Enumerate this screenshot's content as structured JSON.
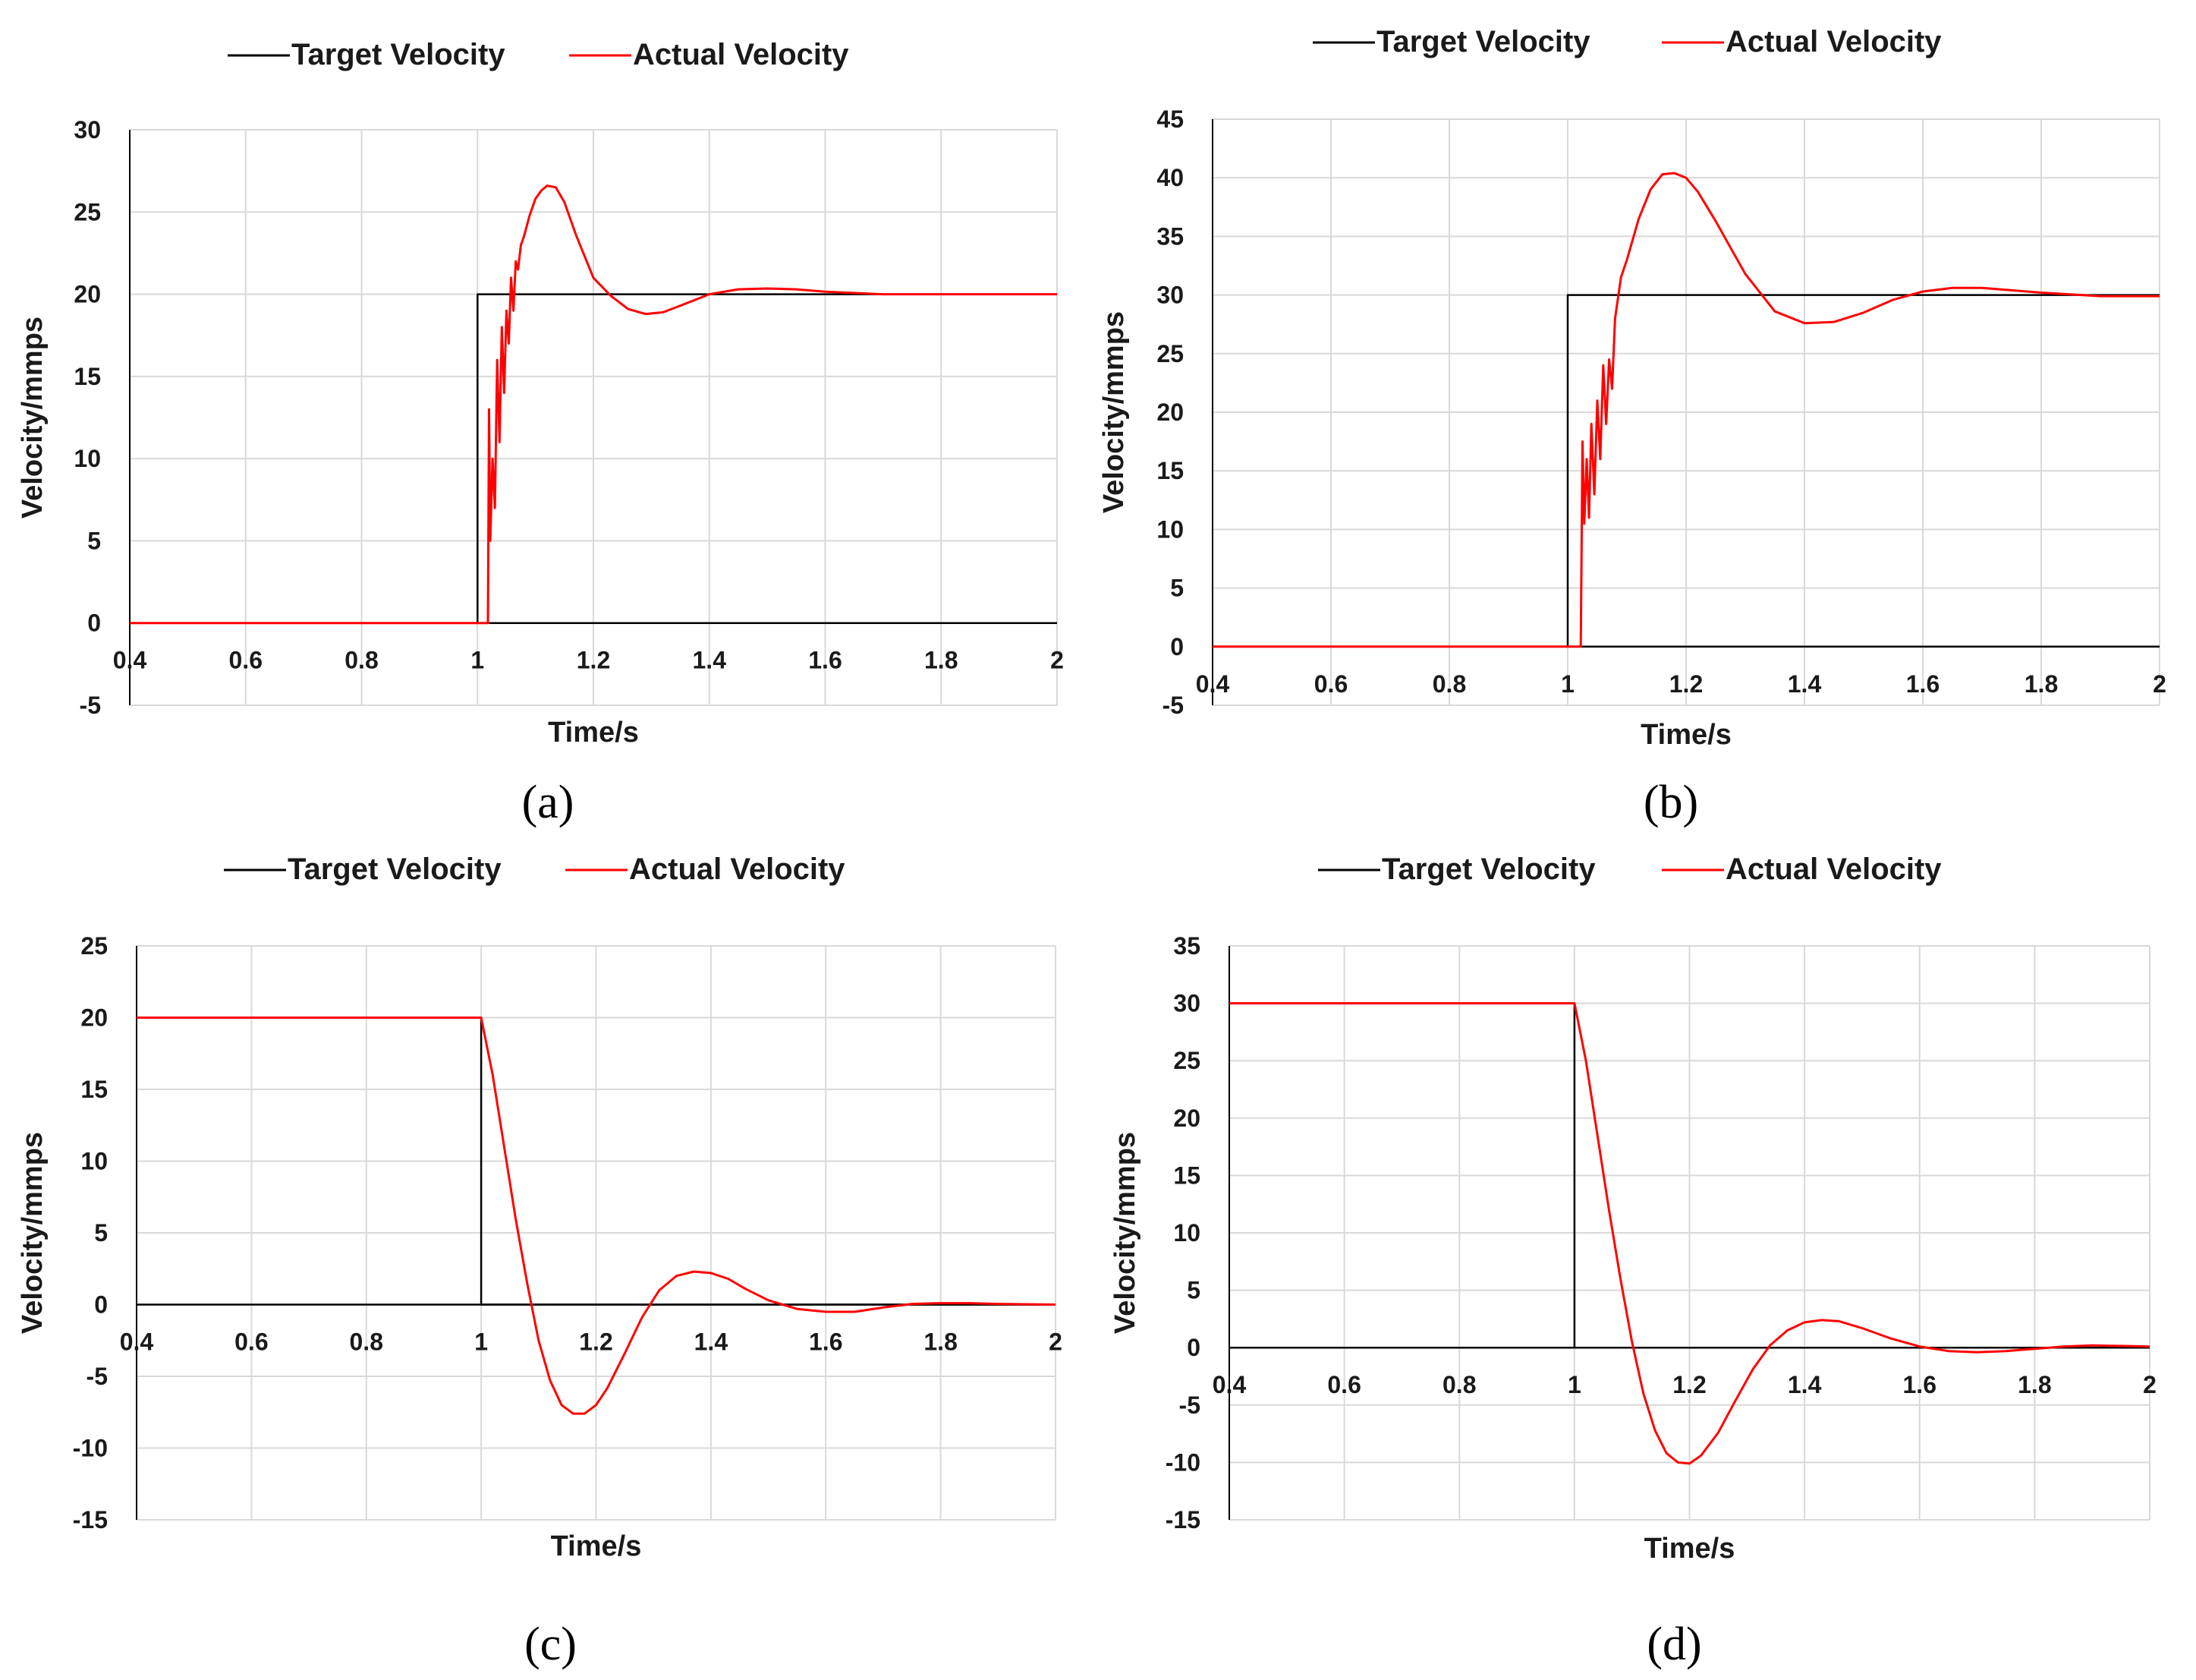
{
  "figure_captions": [
    "(a)",
    "(b)",
    "(c)",
    "(d)"
  ],
  "colors": {
    "target": "#000000",
    "actual": "#ff0000",
    "grid": "#d9d9d9",
    "axis": "#000000"
  },
  "chart_data": [
    {
      "type": "line",
      "caption": "(a)",
      "xlabel": "Time/s",
      "ylabel": "Velocity/mmps",
      "xlim": [
        0.4,
        2
      ],
      "ylim": [
        -5,
        30
      ],
      "xticks": [
        0.4,
        0.6,
        0.8,
        1,
        1.2,
        1.4,
        1.6,
        1.8,
        2
      ],
      "xtick_labels": [
        "0.4",
        "0.6",
        "0.8",
        "1",
        "1.2",
        "1.4",
        "1.6",
        "1.8",
        "2"
      ],
      "yticks": [
        -5,
        0,
        5,
        10,
        15,
        20,
        25,
        30
      ],
      "ytick_labels": [
        "-5",
        "0",
        "5",
        "10",
        "15",
        "20",
        "25",
        "30"
      ],
      "grid": true,
      "legend": [
        "Target Velocity",
        "Actual Velocity"
      ],
      "legend_position": "top",
      "series": [
        {
          "name": "Target Velocity",
          "color": "#000000",
          "x": [
            0.4,
            1.0,
            1.0,
            2.0
          ],
          "y": [
            0,
            0,
            20,
            20
          ]
        },
        {
          "name": "Actual Velocity",
          "color": "#ff0000",
          "x": [
            0.4,
            1.018,
            1.02,
            1.022,
            1.026,
            1.03,
            1.034,
            1.038,
            1.042,
            1.046,
            1.05,
            1.054,
            1.058,
            1.062,
            1.066,
            1.07,
            1.075,
            1.08,
            1.09,
            1.1,
            1.11,
            1.12,
            1.135,
            1.15,
            1.17,
            1.2,
            1.23,
            1.26,
            1.29,
            1.32,
            1.35,
            1.4,
            1.45,
            1.5,
            1.55,
            1.6,
            1.7,
            1.8,
            2.0
          ],
          "y": [
            0,
            0,
            13,
            5,
            10,
            7,
            16,
            11,
            18,
            14,
            19,
            17,
            21,
            19,
            22,
            21.5,
            23,
            23.5,
            24.8,
            25.8,
            26.3,
            26.6,
            26.5,
            25.6,
            23.6,
            21.0,
            19.9,
            19.1,
            18.8,
            18.9,
            19.3,
            20.0,
            20.3,
            20.35,
            20.3,
            20.15,
            20.0,
            20.0,
            20.0
          ]
        }
      ]
    },
    {
      "type": "line",
      "caption": "(b)",
      "xlabel": "Time/s",
      "ylabel": "Velocity/mmps",
      "xlim": [
        0.4,
        2
      ],
      "ylim": [
        -5,
        45
      ],
      "xticks": [
        0.4,
        0.6,
        0.8,
        1,
        1.2,
        1.4,
        1.6,
        1.8,
        2
      ],
      "xtick_labels": [
        "0.4",
        "0.6",
        "0.8",
        "1",
        "1.2",
        "1.4",
        "1.6",
        "1.8",
        "2"
      ],
      "yticks": [
        -5,
        0,
        5,
        10,
        15,
        20,
        25,
        30,
        35,
        40,
        45
      ],
      "ytick_labels": [
        "-5",
        "0",
        "5",
        "10",
        "15",
        "20",
        "25",
        "30",
        "35",
        "40",
        "45"
      ],
      "grid": true,
      "legend": [
        "Target Velocity",
        "Actual Velocity"
      ],
      "legend_position": "top",
      "series": [
        {
          "name": "Target Velocity",
          "color": "#000000",
          "x": [
            0.4,
            1.0,
            1.0,
            2.0
          ],
          "y": [
            0,
            0,
            30,
            30
          ]
        },
        {
          "name": "Actual Velocity",
          "color": "#ff0000",
          "x": [
            0.4,
            1.022,
            1.025,
            1.028,
            1.032,
            1.036,
            1.04,
            1.045,
            1.05,
            1.055,
            1.06,
            1.065,
            1.07,
            1.075,
            1.08,
            1.09,
            1.1,
            1.12,
            1.14,
            1.16,
            1.18,
            1.2,
            1.22,
            1.25,
            1.3,
            1.35,
            1.4,
            1.45,
            1.5,
            1.55,
            1.6,
            1.65,
            1.7,
            1.75,
            1.8,
            1.9,
            2.0
          ],
          "y": [
            0,
            0,
            17.5,
            10.5,
            16,
            11,
            19,
            13,
            21,
            16,
            24,
            19,
            24.5,
            22,
            28,
            31.5,
            33,
            36.5,
            39,
            40.3,
            40.4,
            40.0,
            38.8,
            36.3,
            31.8,
            28.6,
            27.6,
            27.7,
            28.5,
            29.6,
            30.3,
            30.6,
            30.6,
            30.4,
            30.2,
            29.9,
            29.9
          ]
        }
      ]
    },
    {
      "type": "line",
      "caption": "(c)",
      "xlabel": "Time/s",
      "ylabel": "Velocity/mmps",
      "xlim": [
        0.4,
        2
      ],
      "ylim": [
        -15,
        25
      ],
      "xticks": [
        0.4,
        0.6,
        0.8,
        1,
        1.2,
        1.4,
        1.6,
        1.8,
        2
      ],
      "xtick_labels": [
        "0.4",
        "0.6",
        "0.8",
        "1",
        "1.2",
        "1.4",
        "1.6",
        "1.8",
        "2"
      ],
      "yticks": [
        -15,
        -10,
        -5,
        0,
        5,
        10,
        15,
        20,
        25
      ],
      "ytick_labels": [
        "-15",
        "-10",
        "-5",
        "0",
        "5",
        "10",
        "15",
        "20",
        "25"
      ],
      "grid": true,
      "legend": [
        "Target Velocity",
        "Actual Velocity"
      ],
      "legend_position": "top",
      "series": [
        {
          "name": "Target Velocity",
          "color": "#000000",
          "x": [
            0.4,
            1.0,
            1.0,
            2.0
          ],
          "y": [
            20,
            20,
            0,
            0
          ]
        },
        {
          "name": "Actual Velocity",
          "color": "#ff0000",
          "x": [
            0.4,
            1.0,
            1.02,
            1.04,
            1.06,
            1.08,
            1.1,
            1.12,
            1.14,
            1.16,
            1.18,
            1.2,
            1.22,
            1.25,
            1.28,
            1.31,
            1.34,
            1.37,
            1.4,
            1.43,
            1.46,
            1.5,
            1.55,
            1.6,
            1.65,
            1.7,
            1.75,
            1.8,
            1.85,
            1.9,
            2.0
          ],
          "y": [
            20,
            20,
            16,
            11,
            6,
            1.5,
            -2.5,
            -5.3,
            -7,
            -7.6,
            -7.6,
            -7.0,
            -5.8,
            -3.4,
            -0.9,
            1.0,
            2.0,
            2.3,
            2.2,
            1.8,
            1.1,
            0.3,
            -0.3,
            -0.5,
            -0.5,
            -0.2,
            0.05,
            0.1,
            0.1,
            0.05,
            0.0
          ]
        }
      ]
    },
    {
      "type": "line",
      "caption": "(d)",
      "xlabel": "Time/s",
      "ylabel": "Velocity/mmps",
      "xlim": [
        0.4,
        2
      ],
      "ylim": [
        -15,
        35
      ],
      "xticks": [
        0.4,
        0.6,
        0.8,
        1,
        1.2,
        1.4,
        1.6,
        1.8,
        2
      ],
      "xtick_labels": [
        "0.4",
        "0.6",
        "0.8",
        "1",
        "1.2",
        "1.4",
        "1.6",
        "1.8",
        "2"
      ],
      "yticks": [
        -15,
        -10,
        -5,
        0,
        5,
        10,
        15,
        20,
        25,
        30,
        35
      ],
      "ytick_labels": [
        "-15",
        "-10",
        "-5",
        "0",
        "5",
        "10",
        "15",
        "20",
        "25",
        "30",
        "35"
      ],
      "grid": true,
      "legend": [
        "Target Velocity",
        "Actual Velocity"
      ],
      "legend_position": "top",
      "series": [
        {
          "name": "Target Velocity",
          "color": "#000000",
          "x": [
            0.4,
            1.0,
            1.0,
            2.0
          ],
          "y": [
            30,
            30,
            0,
            0
          ]
        },
        {
          "name": "Actual Velocity",
          "color": "#ff0000",
          "x": [
            0.4,
            1.0,
            1.02,
            1.04,
            1.06,
            1.08,
            1.1,
            1.12,
            1.14,
            1.16,
            1.18,
            1.2,
            1.22,
            1.25,
            1.28,
            1.31,
            1.34,
            1.37,
            1.4,
            1.43,
            1.46,
            1.5,
            1.55,
            1.6,
            1.65,
            1.7,
            1.75,
            1.8,
            1.85,
            1.9,
            2.0
          ],
          "y": [
            30,
            30,
            25,
            18.5,
            12,
            6,
            0.5,
            -4,
            -7.2,
            -9.2,
            -10.0,
            -10.1,
            -9.4,
            -7.4,
            -4.6,
            -1.9,
            0.2,
            1.5,
            2.2,
            2.4,
            2.3,
            1.7,
            0.8,
            0.1,
            -0.3,
            -0.4,
            -0.3,
            -0.1,
            0.1,
            0.2,
            0.1
          ]
        }
      ]
    }
  ]
}
